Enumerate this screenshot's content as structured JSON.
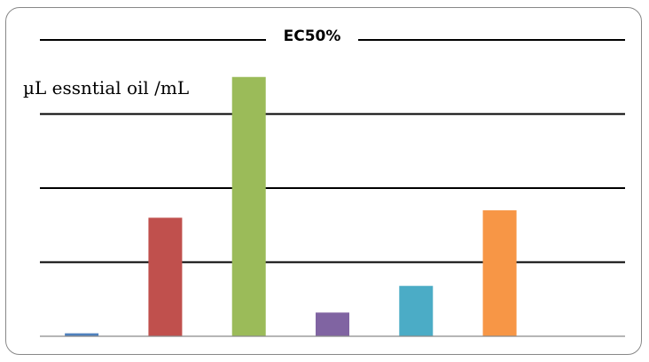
{
  "chart_data": {
    "type": "bar",
    "title": "EC50%",
    "ylabel": "µL essntial oil /mL",
    "xlabel": "",
    "categories": [
      "",
      "",
      "",
      "",
      "",
      ""
    ],
    "values": [
      0.04,
      1.6,
      3.5,
      0.32,
      0.68,
      1.7
    ],
    "colors": [
      "#4f81bd",
      "#c0504d",
      "#9bbb59",
      "#8064a2",
      "#4bacc6",
      "#f79646"
    ],
    "ylim": [
      0,
      4
    ],
    "grid": true,
    "legend": "none"
  }
}
